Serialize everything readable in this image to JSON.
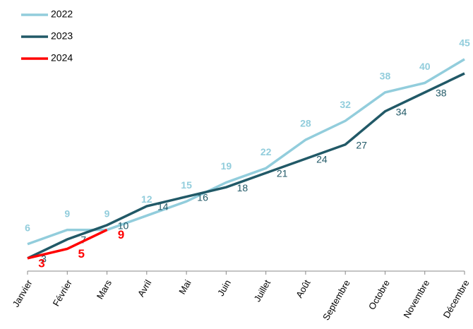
{
  "chart_data": {
    "type": "line",
    "categories": [
      "Janvier",
      "Février",
      "Mars",
      "Avril",
      "Mai",
      "Juin",
      "Juillet",
      "Août",
      "Septembre",
      "Octobre",
      "Novembre",
      "Décembre"
    ],
    "series": [
      {
        "name": "2022",
        "color": "#92cddc",
        "values": [
          6,
          9,
          9,
          12,
          15,
          19,
          22,
          28,
          32,
          38,
          40,
          45
        ]
      },
      {
        "name": "2023",
        "color": "#215967",
        "values": [
          3,
          7,
          10,
          14,
          16,
          18,
          21,
          24,
          27,
          34,
          38,
          42
        ]
      },
      {
        "name": "2024",
        "color": "#ff0000",
        "values": [
          3,
          5,
          9,
          null,
          null,
          null,
          null,
          null,
          null,
          null,
          null,
          null
        ]
      }
    ],
    "legend": "top-left"
  }
}
